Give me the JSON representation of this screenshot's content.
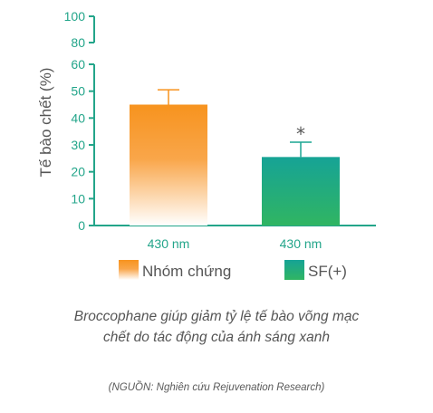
{
  "chart_data": {
    "type": "bar",
    "title": "",
    "ylabel": "Tế bào chết (%)",
    "xlabel": "",
    "ylim": [
      0,
      100
    ],
    "axis_break": [
      60,
      80
    ],
    "yticks": [
      0,
      10,
      20,
      30,
      40,
      50,
      60,
      80,
      100
    ],
    "categories": [
      "430 nm",
      "430 nm"
    ],
    "series": [
      {
        "name": "Nhóm chứng",
        "value": 45,
        "error": 5.5,
        "color_top": "#f7931e",
        "color_bottom": "#ffffff",
        "annotation": ""
      },
      {
        "name": "SF(+)",
        "value": 25.5,
        "error": 5.5,
        "color_top": "#1aa592",
        "color_bottom": "#2fb563",
        "annotation": "*"
      }
    ],
    "axis_color": "#23a58a",
    "grid": false,
    "legend_placement": "bottom"
  },
  "caption": {
    "line1": "Broccophane giúp giảm tỷ lệ tế bào võng mạc",
    "line2": "chết do tác động của ánh sáng xanh",
    "source": "(NGUỒN: Nghiên cứu Rejuvenation Research)"
  }
}
